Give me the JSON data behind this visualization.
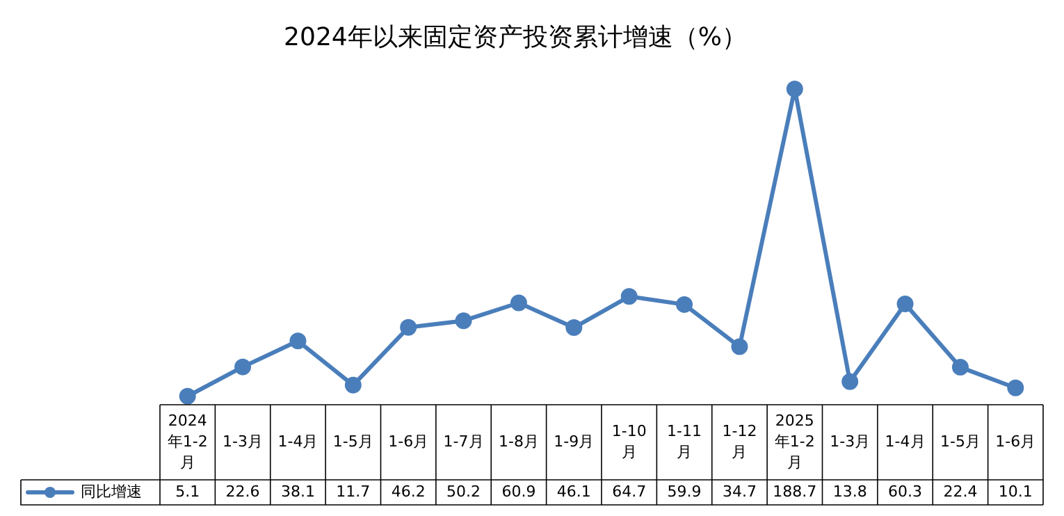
{
  "chart_data": {
    "type": "line",
    "title": "2024年以来固定资产投资累计增速（%）",
    "categories": [
      "2024年1-2月",
      "1-3月",
      "1-4月",
      "1-5月",
      "1-6月",
      "1-7月",
      "1-8月",
      "1-9月",
      "1-10月",
      "1-11月",
      "1-12月",
      "2025年1-2月",
      "1-3月",
      "1-4月",
      "1-5月",
      "1-6月"
    ],
    "series": [
      {
        "name": "同比增速",
        "color": "#4a7ebb",
        "values": [
          5.1,
          22.6,
          38.1,
          11.7,
          46.2,
          50.2,
          60.9,
          46.1,
          64.7,
          59.9,
          34.7,
          188.7,
          13.8,
          60.3,
          22.4,
          10.1
        ]
      }
    ],
    "data_labels": true,
    "legend": "bottom left",
    "marker": "circle"
  }
}
